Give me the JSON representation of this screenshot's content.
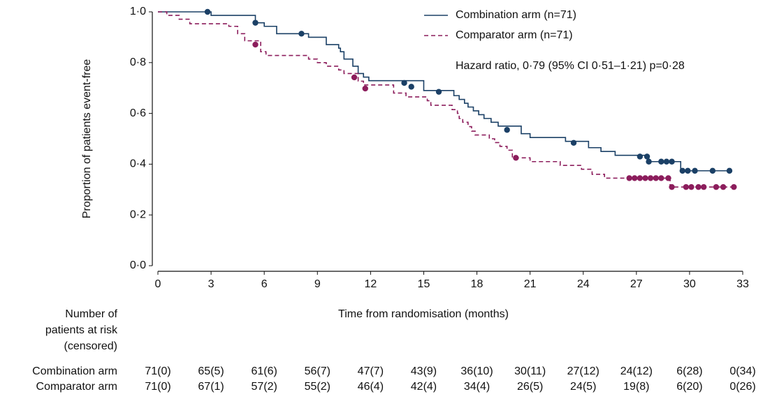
{
  "chart_data": {
    "type": "kaplan-meier",
    "xlabel": "Time from randomisation (months)",
    "ylabel": "Proportion of patients event-free",
    "xlim": [
      0,
      33
    ],
    "xticks": [
      0,
      3,
      6,
      9,
      12,
      15,
      18,
      21,
      24,
      27,
      30,
      33
    ],
    "ylim": [
      0,
      1
    ],
    "yticks": [
      {
        "value": 0,
        "label": "0·0"
      },
      {
        "value": 0.2,
        "label": "0·2"
      },
      {
        "value": 0.4,
        "label": "0·4"
      },
      {
        "value": 0.6,
        "label": "0·6"
      },
      {
        "value": 0.8,
        "label": "0·8"
      },
      {
        "value": 1,
        "label": "1·0"
      }
    ],
    "legend": "upper right",
    "annotation": "Hazard ratio, 0·79 (95% CI 0·51–1·21) p=0·28",
    "series": [
      {
        "name": "Combination arm (n=71)",
        "color": "#1b4066",
        "dash": false,
        "x": [
          0,
          3.0,
          5.5,
          6.0,
          6.7,
          8.5,
          9.5,
          10.2,
          10.3,
          10.5,
          11.0,
          11.3,
          11.6,
          11.9,
          15.0,
          16.7,
          17.0,
          17.3,
          17.5,
          17.8,
          18.1,
          18.4,
          18.8,
          19.2,
          20.5,
          21.0,
          23.0,
          24.3,
          25.0,
          25.8,
          27.7,
          29.5,
          32.3
        ],
        "values": [
          1.0,
          0.986,
          0.957,
          0.943,
          0.914,
          0.9,
          0.871,
          0.857,
          0.843,
          0.814,
          0.786,
          0.757,
          0.743,
          0.729,
          0.69,
          0.67,
          0.655,
          0.64,
          0.625,
          0.61,
          0.595,
          0.58,
          0.565,
          0.55,
          0.52,
          0.505,
          0.49,
          0.465,
          0.45,
          0.435,
          0.41,
          0.374,
          0.374
        ],
        "censored": {
          "x": [
            2.8,
            5.5,
            8.1,
            13.9,
            14.3,
            15.85,
            19.7,
            23.46,
            27.2,
            27.6,
            27.7,
            28.4,
            28.7,
            29.0,
            29.6,
            29.9,
            30.3,
            31.3,
            32.25
          ],
          "values": [
            1.0,
            0.957,
            0.914,
            0.72,
            0.705,
            0.685,
            0.535,
            0.484,
            0.43,
            0.43,
            0.41,
            0.41,
            0.41,
            0.41,
            0.374,
            0.374,
            0.374,
            0.374,
            0.374
          ]
        }
      },
      {
        "name": "Comparator arm (n=71)",
        "color": "#8c1d5c",
        "dash": true,
        "x": [
          0,
          0.5,
          1.2,
          1.8,
          4.0,
          4.5,
          4.9,
          5.8,
          6.1,
          8.5,
          9.0,
          9.5,
          10.2,
          10.5,
          11.3,
          11.6,
          13.3,
          14.0,
          15.2,
          15.4,
          16.6,
          16.9,
          17.0,
          17.2,
          17.5,
          17.7,
          17.9,
          18.7,
          19.0,
          19.3,
          19.7,
          20.0,
          21.0,
          22.7,
          23.9,
          24.5,
          25.2,
          28.9,
          32.5
        ],
        "values": [
          1.0,
          0.986,
          0.971,
          0.953,
          0.943,
          0.914,
          0.886,
          0.843,
          0.828,
          0.814,
          0.8,
          0.786,
          0.771,
          0.757,
          0.727,
          0.712,
          0.68,
          0.665,
          0.65,
          0.632,
          0.615,
          0.6,
          0.58,
          0.565,
          0.548,
          0.53,
          0.515,
          0.5,
          0.485,
          0.47,
          0.455,
          0.425,
          0.41,
          0.395,
          0.38,
          0.36,
          0.345,
          0.31,
          0.31
        ],
        "censored": {
          "x": [
            5.5,
            11.08,
            11.7,
            20.2,
            26.6,
            26.9,
            27.2,
            27.5,
            27.8,
            28.1,
            28.4,
            28.8,
            29.0,
            29.8,
            30.1,
            30.5,
            30.8,
            31.5,
            31.9,
            32.5
          ],
          "values": [
            0.871,
            0.742,
            0.698,
            0.425,
            0.345,
            0.345,
            0.345,
            0.345,
            0.345,
            0.345,
            0.345,
            0.345,
            0.31,
            0.31,
            0.31,
            0.31,
            0.31,
            0.31,
            0.31,
            0.31
          ]
        }
      }
    ],
    "risk_table": {
      "title": [
        "Number of",
        "patients at risk",
        "(censored)"
      ],
      "rows": [
        {
          "name": "Combination arm",
          "values": [
            "71(0)",
            "65(5)",
            "61(6)",
            "56(7)",
            "47(7)",
            "43(9)",
            "36(10)",
            "30(11)",
            "27(12)",
            "24(12)",
            "6(28)",
            "0(34)"
          ]
        },
        {
          "name": "Comparator arm",
          "values": [
            "71(0)",
            "67(1)",
            "57(2)",
            "55(2)",
            "46(4)",
            "42(4)",
            "34(4)",
            "26(5)",
            "24(5)",
            "19(8)",
            "6(20)",
            "0(26)"
          ]
        }
      ]
    }
  }
}
